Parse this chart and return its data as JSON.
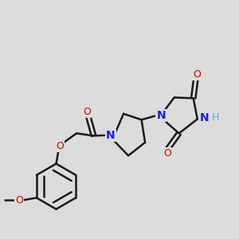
{
  "bg_color": "#dcdcdc",
  "bond_color": "#1a1a1a",
  "bond_width": 1.8,
  "N_color": "#2020cc",
  "O_color": "#cc0000",
  "H_color": "#5aadad",
  "figsize": [
    3.0,
    3.0
  ],
  "dpi": 100,
  "xlim": [
    0,
    10
  ],
  "ylim": [
    0,
    10
  ]
}
